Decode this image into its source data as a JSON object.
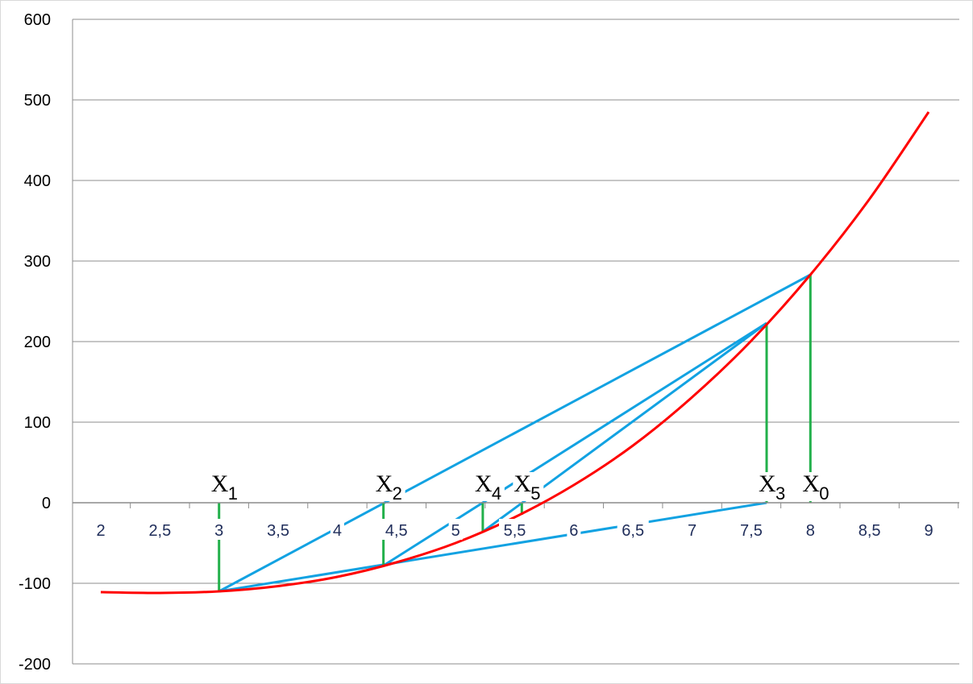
{
  "chart_data": {
    "type": "line",
    "title": "",
    "xlabel": "",
    "ylabel": "",
    "xlim": [
      2,
      9
    ],
    "ylim": [
      -200,
      600
    ],
    "x_ticks": [
      "2",
      "2,5",
      "3",
      "3,5",
      "4",
      "4,5",
      "5",
      "5,5",
      "6",
      "6,5",
      "7",
      "7,5",
      "8",
      "8,5",
      "9"
    ],
    "x_tick_values": [
      2,
      2.5,
      3,
      3.5,
      4,
      4.5,
      5,
      5.5,
      6,
      6.5,
      7,
      7.5,
      8,
      8.5,
      9
    ],
    "y_ticks": [
      "-200",
      "-100",
      "0",
      "100",
      "200",
      "300",
      "400",
      "500",
      "600"
    ],
    "y_tick_values": [
      -200,
      -100,
      0,
      100,
      200,
      300,
      400,
      500,
      600
    ],
    "grid": "horizontal",
    "curve": {
      "color": "#ff0000",
      "x": [
        2,
        2.5,
        3,
        3.5,
        4,
        4.5,
        5,
        5.5,
        6,
        6.5,
        7,
        7.5,
        8,
        8.5,
        9
      ],
      "y": [
        -111,
        -112,
        -110,
        -103.5,
        -92,
        -74,
        -50,
        -18,
        22,
        71,
        131,
        201,
        283,
        377,
        485
      ]
    },
    "iterates": [
      {
        "label": "X",
        "sub": "0",
        "x": 8,
        "fx": 283
      },
      {
        "label": "X",
        "sub": "1",
        "x": 3,
        "fx": -110
      },
      {
        "label": "X",
        "sub": "2",
        "x": 4.39,
        "fx": -78
      },
      {
        "label": "X",
        "sub": "3",
        "x": 7.63,
        "fx": 223
      },
      {
        "label": "X",
        "sub": "4",
        "x": 5.23,
        "fx": -36
      },
      {
        "label": "X",
        "sub": "5",
        "x": 5.56,
        "fx": -15
      }
    ],
    "chords": [
      {
        "from": [
          8,
          283
        ],
        "to": [
          3,
          -110
        ]
      },
      {
        "from": [
          3,
          -110
        ],
        "to": [
          7.63,
          0
        ]
      },
      {
        "from": [
          7.63,
          223
        ],
        "to": [
          4.39,
          -78
        ]
      },
      {
        "from": [
          7.63,
          223
        ],
        "to": [
          5.23,
          -36
        ]
      }
    ],
    "colors": {
      "curve": "#ff0000",
      "chord": "#12a2e2",
      "drop": "#22b04b",
      "grid": "#8c8c8c"
    }
  }
}
